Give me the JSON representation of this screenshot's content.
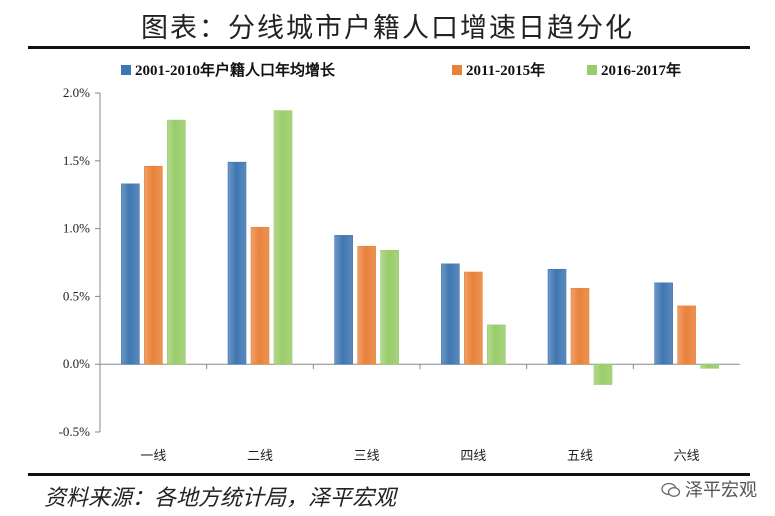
{
  "title": "图表：分线城市户籍人口增速日趋分化",
  "source": "资料来源：各地方统计局，泽平宏观",
  "watermark": "泽平宏观",
  "watermark_icon": "wechat-icon",
  "colors": {
    "series1": "#3f76b1",
    "series2": "#e8823a",
    "series3": "#99cc6a",
    "axis": "#888888"
  },
  "chart_data": {
    "type": "bar",
    "title": "",
    "xlabel": "",
    "ylabel": "",
    "ylim": [
      -0.5,
      2.0
    ],
    "yticks": [
      "-0.5%",
      "0.0%",
      "0.5%",
      "1.0%",
      "1.5%",
      "2.0%"
    ],
    "ytick_values": [
      -0.5,
      0.0,
      0.5,
      1.0,
      1.5,
      2.0
    ],
    "grid": false,
    "legend": "top",
    "categories": [
      "一线",
      "二线",
      "三线",
      "四线",
      "五线",
      "六线"
    ],
    "series": [
      {
        "name": "2001-2010年户籍人口年均增长",
        "values": [
          1.33,
          1.49,
          0.95,
          0.74,
          0.7,
          0.6
        ]
      },
      {
        "name": "2011-2015年",
        "values": [
          1.46,
          1.01,
          0.87,
          0.68,
          0.56,
          0.43
        ]
      },
      {
        "name": "2016-2017年",
        "values": [
          1.8,
          1.87,
          0.84,
          0.29,
          -0.15,
          -0.03
        ]
      }
    ]
  }
}
